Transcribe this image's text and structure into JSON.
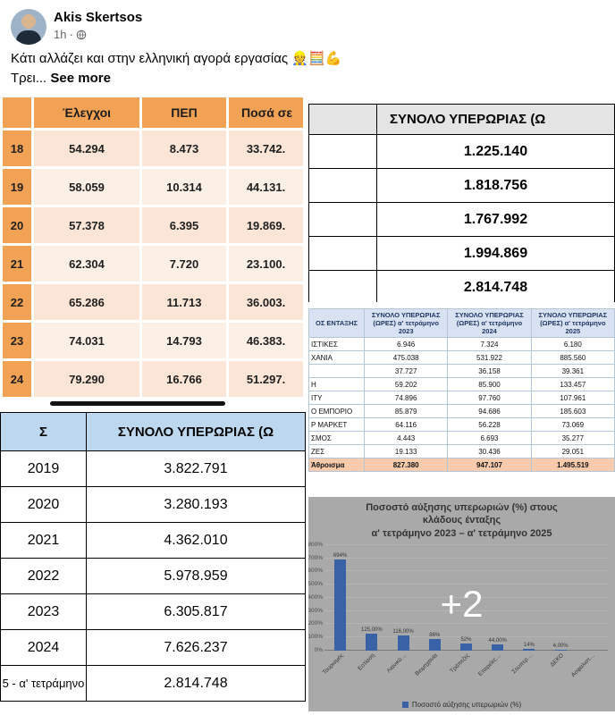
{
  "post": {
    "author": "Akis Skertsos",
    "time": "1h",
    "text": "Κάτι αλλάζει και στην ελληνική αγορά εργασίας 👷🧮💪",
    "truncated": "Τρει...",
    "see_more": "See more",
    "more_photos_overlay": "+2"
  },
  "inspections_table": {
    "col_headers": [
      "Έλεγχοι",
      "ΠΕΠ",
      "Ποσά σε"
    ],
    "rows": [
      [
        "18",
        "54.294",
        "8.473",
        "33.742."
      ],
      [
        "19",
        "58.059",
        "10.314",
        "44.131."
      ],
      [
        "20",
        "57.378",
        "6.395",
        "19.869."
      ],
      [
        "21",
        "62.304",
        "7.720",
        "23.100."
      ],
      [
        "22",
        "65.286",
        "11.713",
        "36.003."
      ],
      [
        "23",
        "74.031",
        "14.793",
        "46.383."
      ],
      [
        "24",
        "79.290",
        "16.766",
        "51.297."
      ]
    ]
  },
  "overtime_top": {
    "header": "ΣΥΝΟΛΟ ΥΠΕΡΩΡΙΑΣ (Ω",
    "rows": [
      [
        "",
        "1.225.140"
      ],
      [
        "",
        "1.818.756"
      ],
      [
        "",
        "1.767.992"
      ],
      [
        "",
        "1.994.869"
      ],
      [
        "",
        "2.814.748"
      ]
    ]
  },
  "sector_table": {
    "label_header": "ΟΣ ΕΝΤΑΞΗΣ",
    "col_headers": [
      "ΣΥΝΟΛΟ ΥΠΕΡΩΡΙΑΣ (ΩΡΕΣ) α' τετράμηνο 2023",
      "ΣΥΝΟΛΟ ΥΠΕΡΩΡΙΑΣ (ΩΡΕΣ) α' τετράμηνο 2024",
      "ΣΥΝΟΛΟ ΥΠΕΡΩΡΙΑΣ (ΩΡΕΣ) α' τετράμηνο 2025"
    ],
    "rows": [
      [
        "ΙΣΤΙΚΕΣ",
        "6.946",
        "7.324",
        "6.180"
      ],
      [
        "ΧΑΝΙΑ",
        "475.038",
        "531.922",
        "885.560"
      ],
      [
        "",
        "37.727",
        "36.158",
        "39.361"
      ],
      [
        "Η",
        "59.202",
        "85.900",
        "133.457"
      ],
      [
        "ITY",
        "74.896",
        "97.760",
        "107.961"
      ],
      [
        "Ο ΕΜΠΟΡΙΟ",
        "85.879",
        "94.686",
        "185.603"
      ],
      [
        "Ρ ΜΑΡΚΕΤ",
        "64.116",
        "56.228",
        "73.069"
      ],
      [
        "ΣΜΟΣ",
        "4.443",
        "6.693",
        "35.277"
      ],
      [
        "ΖΕΣ",
        "19.133",
        "30.436",
        "29.051"
      ],
      [
        "Άθροισμα",
        "827.380",
        "947.107",
        "1.495.519"
      ]
    ]
  },
  "yearly_table": {
    "year_col_header": "Σ",
    "header": "ΣΥΝΟΛΟ ΥΠΕΡΩΡΙΑΣ (Ω",
    "rows": [
      [
        "2019",
        "3.822.791"
      ],
      [
        "2020",
        "3.280.193"
      ],
      [
        "2021",
        "4.362.010"
      ],
      [
        "2022",
        "5.978.959"
      ],
      [
        "2023",
        "6.305.817"
      ],
      [
        "2024",
        "7.626.237"
      ],
      [
        "5 - α' τετράμηνο",
        "2.814.748"
      ]
    ]
  },
  "chart_data": {
    "type": "bar",
    "title_lines": [
      "Ποσοστό αύξησης υπερωριών (%) στους",
      "κλάδους ένταξης",
      "α' τετράμηνο 2023 – α' τετράμηνο 2025"
    ],
    "categories": [
      "Τουρισμός",
      "Εστίαση",
      "Λιανικό…",
      "Βιομηχανία",
      "Τράπεζες",
      "Εταιρείες…",
      "Σουπερ…",
      "ΔΕΚΟ",
      "Ασφαλιστ…"
    ],
    "values": [
      694,
      125,
      116,
      86,
      52,
      44,
      14,
      4,
      null
    ],
    "bar_labels": [
      "694%",
      "125,00%",
      "116,00%",
      "86%",
      "52%",
      "44,00%",
      "14%",
      "4,00%",
      ""
    ],
    "ylim": [
      0,
      800
    ],
    "y_ticks": [
      "0%",
      "100%",
      "200%",
      "300%",
      "400%",
      "500%",
      "600%",
      "700%",
      "800%"
    ],
    "grid": true,
    "legend": "Ποσοστό αύξησης υπερωριών (%)",
    "legend_position": "bottom",
    "bar_color": "#4472C4"
  },
  "colors": {
    "accent_orange": "#F2A254",
    "row_peach": "#FBE5D6",
    "header_blue": "#BDD7EE",
    "sector_header": "#D9E2F3",
    "total_row": "#F8CBAD",
    "bar_blue": "#4472C4",
    "chart_bg": "#C7C7C7",
    "meta_gray": "#65676B",
    "text": "#050505"
  }
}
